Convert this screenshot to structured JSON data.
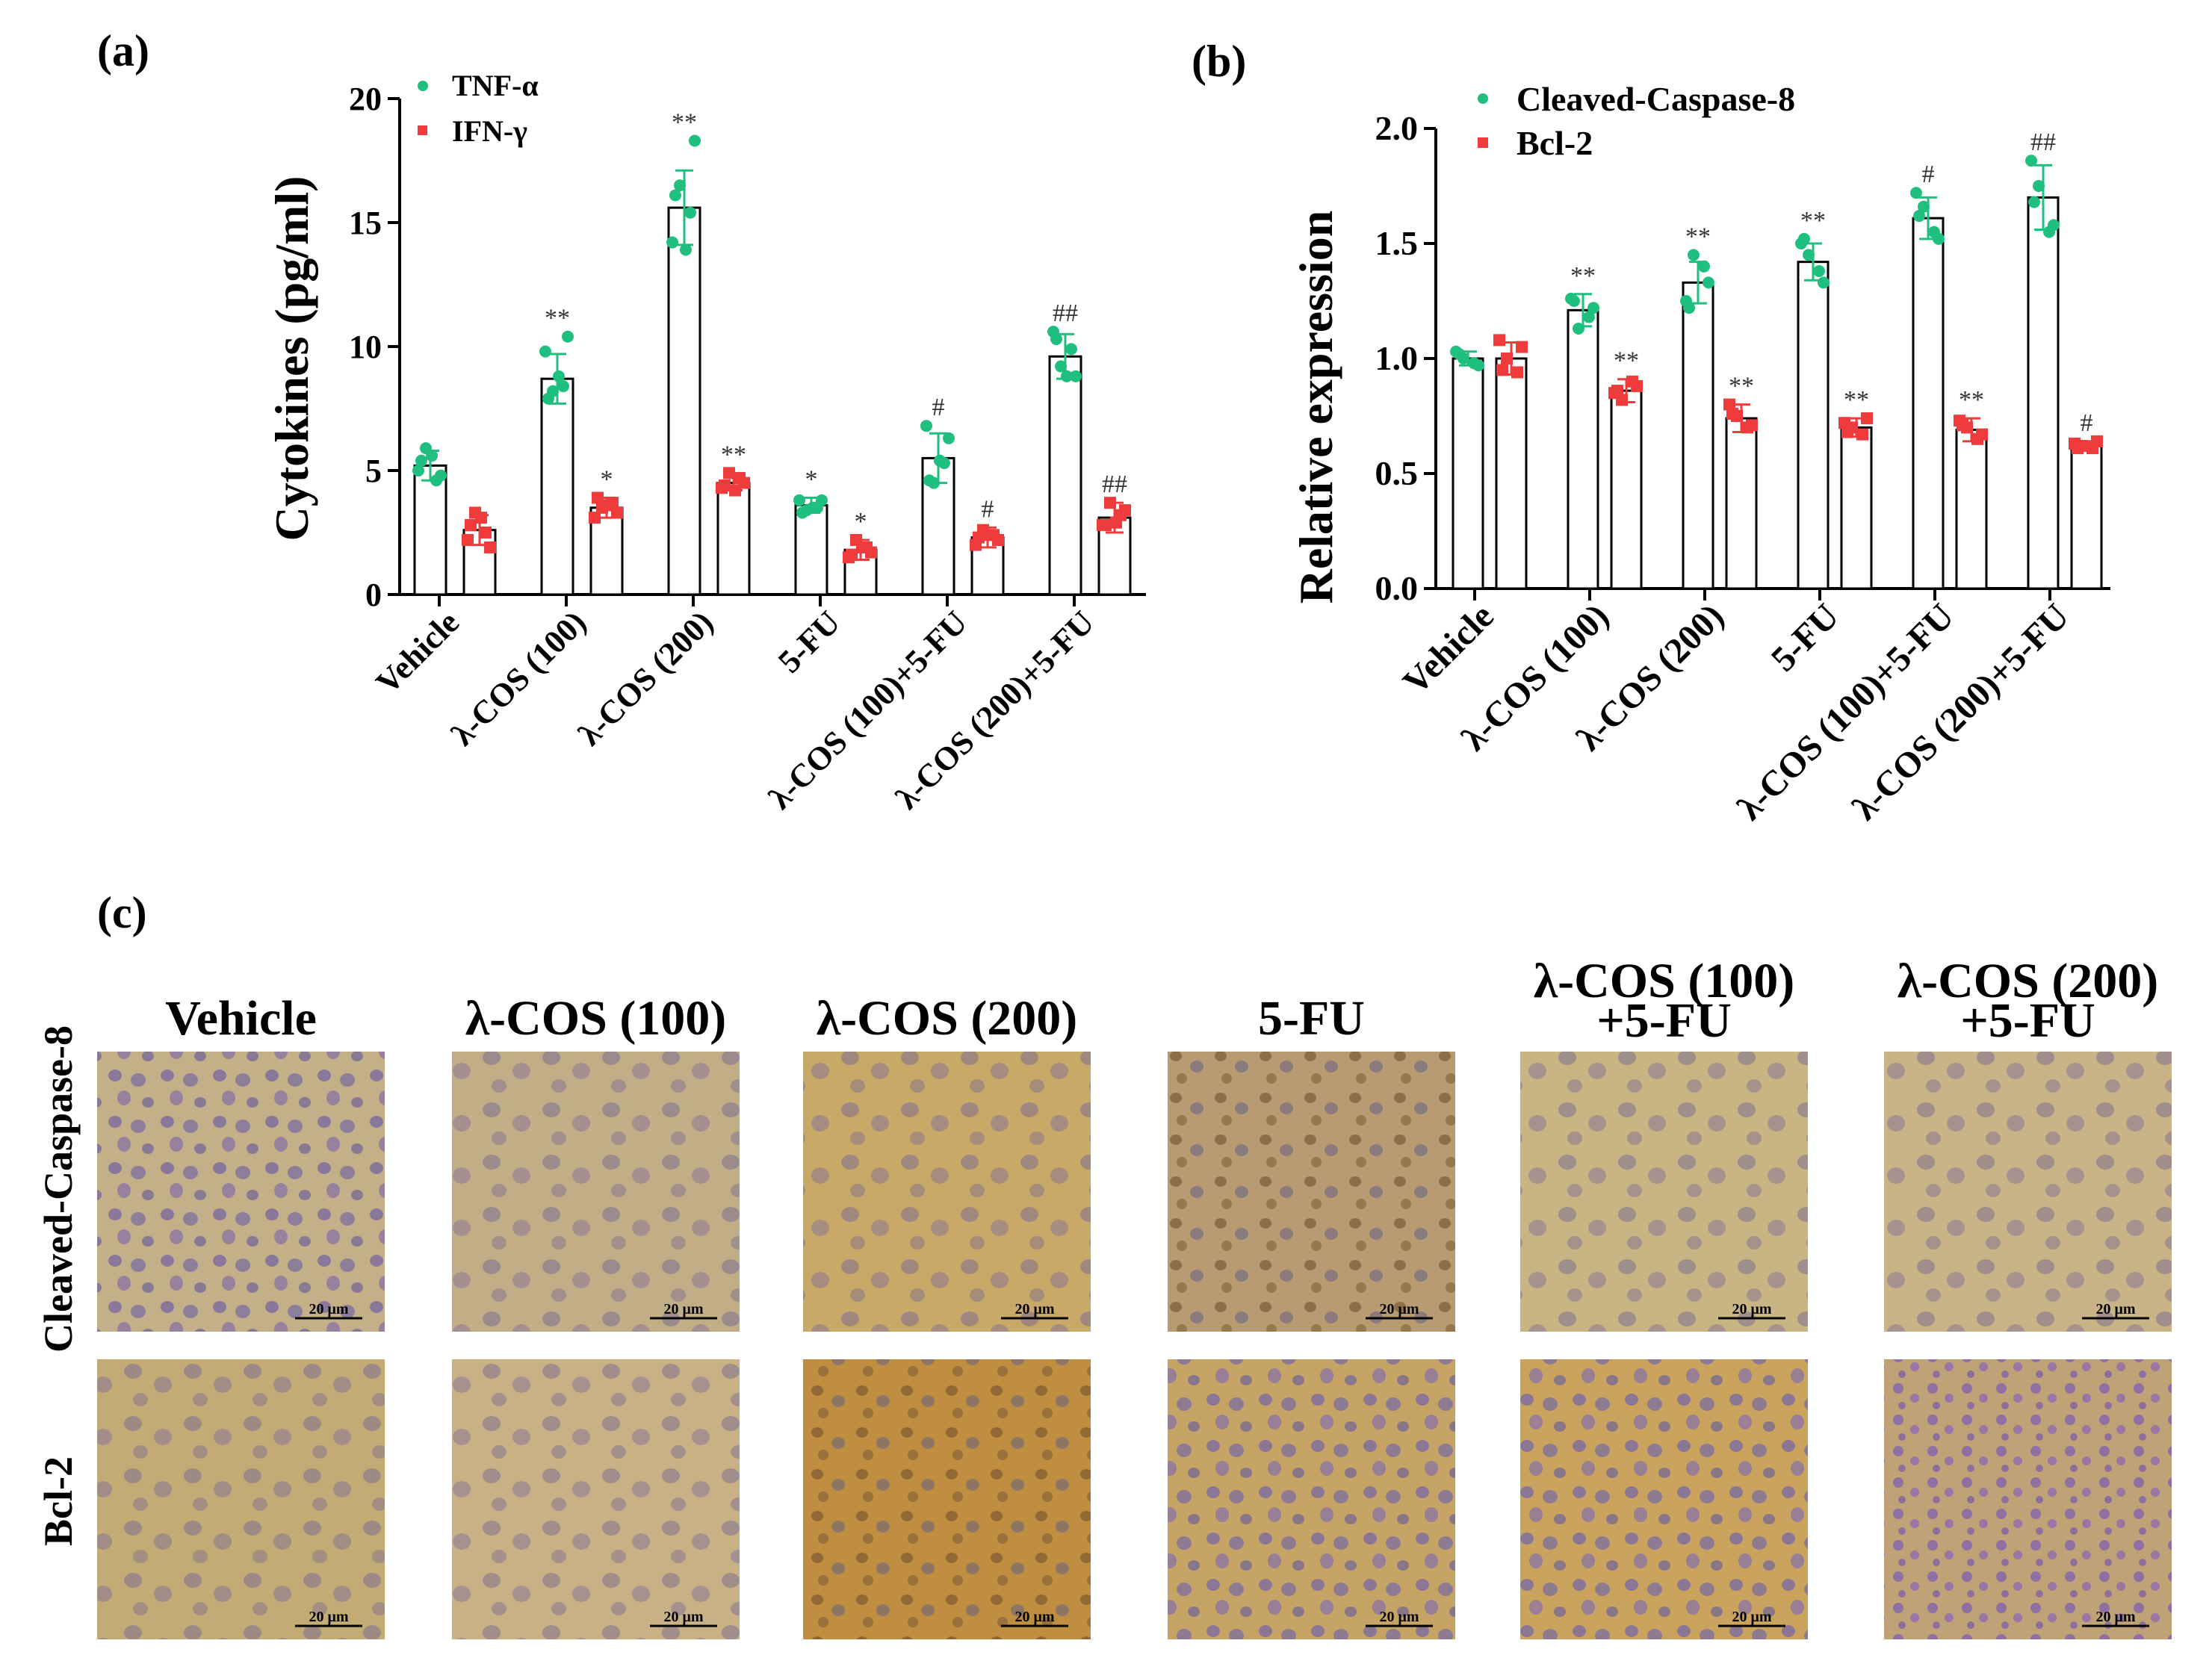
{
  "panel_labels": {
    "a": "(a)",
    "b": "(b)",
    "c": "(c)"
  },
  "colors": {
    "series1": "#1fbf7f",
    "series2": "#ef3b3b",
    "axis": "#000000"
  },
  "chart_data": [
    {
      "type": "bar",
      "ylabel": "Cytokines (pg/ml)",
      "ylim": [
        0,
        20
      ],
      "yticks": [
        0,
        5,
        10,
        15,
        20
      ],
      "categories": [
        "Vehicle",
        "λ-COS (100)",
        "λ-COS (200)",
        "5-FU",
        "λ-COS (100)+5-FU",
        "λ-COS (200)+5-FU"
      ],
      "series": [
        {
          "name": "TNF-α",
          "values": [
            5.2,
            8.7,
            15.6,
            3.6,
            5.5,
            9.6
          ],
          "errors": [
            0.6,
            1.0,
            1.5,
            0.3,
            1.0,
            0.9
          ],
          "marks": [
            "",
            "**",
            "**",
            "*",
            "#",
            "##"
          ],
          "points": [
            [
              5.0,
              4.6,
              5.9,
              4.8,
              5.4,
              5.6
            ],
            [
              9.8,
              8.4,
              8.2,
              10.4,
              7.9,
              8.8
            ],
            [
              14.2,
              15.4,
              16.5,
              18.3,
              16.1,
              13.9
            ],
            [
              3.8,
              3.5,
              3.4,
              3.8,
              3.3,
              3.5
            ],
            [
              6.8,
              5.3,
              4.5,
              6.3,
              4.6,
              5.4
            ],
            [
              10.6,
              9.9,
              9.2,
              8.8,
              10.3,
              8.8
            ]
          ]
        },
        {
          "name": "IFN-γ",
          "values": [
            2.6,
            3.5,
            4.5,
            1.8,
            2.3,
            3.1
          ],
          "errors": [
            0.6,
            0.4,
            0.3,
            0.4,
            0.4,
            0.6
          ],
          "marks": [
            "",
            "*",
            "**",
            "*",
            "#",
            "##"
          ],
          "points": [
            [
              2.2,
              2.5,
              3.3,
              1.9,
              2.8,
              3.1
            ],
            [
              3.1,
              3.7,
              3.5,
              3.3,
              3.9,
              3.6
            ],
            [
              4.3,
              4.7,
              4.9,
              4.5,
              4.4,
              4.2
            ],
            [
              1.5,
              1.9,
              2.2,
              1.7,
              1.6,
              1.9
            ],
            [
              2.0,
              2.4,
              2.6,
              2.2,
              2.3,
              2.4
            ],
            [
              2.8,
              3.2,
              3.7,
              3.4,
              2.8,
              2.9
            ]
          ]
        }
      ]
    },
    {
      "type": "bar",
      "ylabel": "Relative expression",
      "ylim": [
        0,
        2
      ],
      "yticks": [
        "0.0",
        "0.5",
        "1.0",
        "1.5",
        "2.0"
      ],
      "categories": [
        "Vehicle",
        "λ-COS (100)",
        "λ-COS (200)",
        "5-FU",
        "λ-COS (100)+5-FU",
        "λ-COS (200)+5-FU"
      ],
      "series": [
        {
          "name": "Cleaved-Caspase-8",
          "values": [
            1.0,
            1.21,
            1.33,
            1.42,
            1.61,
            1.7
          ],
          "errors": [
            0.03,
            0.07,
            0.09,
            0.08,
            0.09,
            0.14
          ],
          "marks": [
            "",
            "**",
            "**",
            "**",
            "#",
            "##"
          ],
          "points": [
            [
              1.03,
              0.98,
              1.0,
              0.97,
              1.02
            ],
            [
              1.26,
              1.18,
              1.13,
              1.22,
              1.25
            ],
            [
              1.25,
              1.4,
              1.45,
              1.33,
              1.22
            ],
            [
              1.5,
              1.38,
              1.45,
              1.33,
              1.52
            ],
            [
              1.72,
              1.55,
              1.66,
              1.52,
              1.62
            ],
            [
              1.86,
              1.55,
              1.75,
              1.58,
              1.68
            ]
          ]
        },
        {
          "name": "Bcl-2",
          "values": [
            1.0,
            0.86,
            0.74,
            0.7,
            0.69,
            0.62
          ],
          "errors": [
            0.07,
            0.05,
            0.06,
            0.04,
            0.05,
            0.02
          ],
          "marks": [
            "",
            "**",
            "**",
            "**",
            "**",
            "#"
          ],
          "points": [
            [
              1.08,
              0.94,
              1.0,
              1.05,
              0.95
            ],
            [
              0.85,
              0.9,
              0.82,
              0.88,
              0.86
            ],
            [
              0.8,
              0.7,
              0.75,
              0.71,
              0.76
            ],
            [
              0.72,
              0.67,
              0.7,
              0.74,
              0.68
            ],
            [
              0.73,
              0.65,
              0.7,
              0.67,
              0.71
            ],
            [
              0.63,
              0.61,
              0.62,
              0.64,
              0.61
            ]
          ]
        }
      ]
    }
  ],
  "micro": {
    "columns": [
      "Vehicle",
      "λ-COS (100)",
      "λ-COS (200)",
      "5-FU",
      "λ-COS (100)\n+5-FU",
      "λ-COS (200)\n+5-FU"
    ],
    "rows": [
      "Cleaved-Caspase-8",
      "Bcl-2"
    ],
    "scale_bar": "20 μm"
  }
}
